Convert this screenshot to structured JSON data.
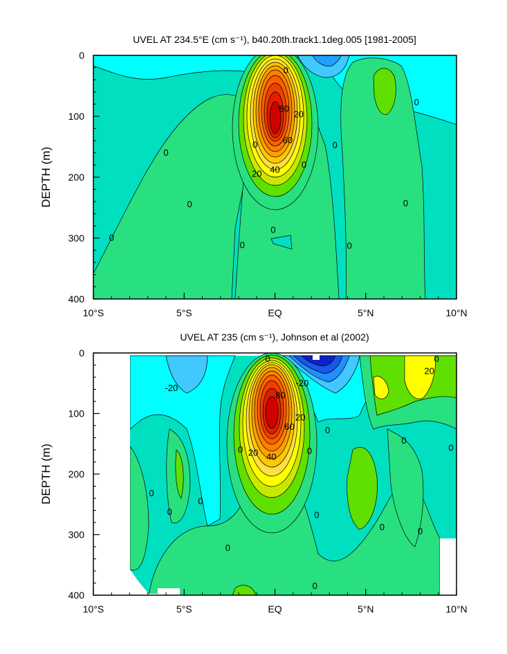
{
  "chart_data": [
    {
      "type": "heatmap",
      "subtype": "filled-contour",
      "title": "UVEL AT 234.5°E (cm s⁻¹), b40.20th.track1.1deg.005 [1981-2005]",
      "ylabel": "DEPTH (m)",
      "xlabel": "",
      "x_ticks": [
        "10°S",
        "5°S",
        "EQ",
        "5°N",
        "10°N"
      ],
      "x_values": [
        -10,
        -5,
        0,
        5,
        10
      ],
      "y_ticks": [
        "0",
        "100",
        "200",
        "300",
        "400"
      ],
      "y_values": [
        0,
        100,
        200,
        300,
        400
      ],
      "xlim": [
        -10,
        10
      ],
      "ylim": [
        400,
        0
      ],
      "contour_interval": 10,
      "core": {
        "lat": 0,
        "depth": 105,
        "max_speed": 100
      },
      "contour_labels": [
        {
          "text": "0",
          "lat": 0.6,
          "depth": 25
        },
        {
          "text": "0",
          "lat": 7.8,
          "depth": 77
        },
        {
          "text": "0",
          "lat": -6,
          "depth": 160
        },
        {
          "text": "0",
          "lat": -1.1,
          "depth": 147
        },
        {
          "text": "0",
          "lat": 3.3,
          "depth": 148
        },
        {
          "text": "0",
          "lat": 1.6,
          "depth": 180
        },
        {
          "text": "0",
          "lat": -4.7,
          "depth": 245
        },
        {
          "text": "0",
          "lat": 7.2,
          "depth": 243
        },
        {
          "text": "0",
          "lat": -9,
          "depth": 300
        },
        {
          "text": "0",
          "lat": -1.8,
          "depth": 312
        },
        {
          "text": "0",
          "lat": -0.1,
          "depth": 287
        },
        {
          "text": "0",
          "lat": 4.1,
          "depth": 313
        },
        {
          "text": "80",
          "lat": 0.5,
          "depth": 88
        },
        {
          "text": "20",
          "lat": 1.3,
          "depth": 97
        },
        {
          "text": "60",
          "lat": 0.7,
          "depth": 140
        },
        {
          "text": "40",
          "lat": 0,
          "depth": 188
        },
        {
          "text": "20",
          "lat": -1,
          "depth": 195
        }
      ]
    },
    {
      "type": "heatmap",
      "subtype": "filled-contour",
      "title": "UVEL AT 235 (cm s⁻¹), Johnson et al (2002)",
      "ylabel": "DEPTH (m)",
      "xlabel": "",
      "x_ticks": [
        "10°S",
        "5°S",
        "EQ",
        "5°N",
        "10°N"
      ],
      "x_values": [
        -10,
        -5,
        0,
        5,
        10
      ],
      "y_ticks": [
        "0",
        "100",
        "200",
        "300",
        "400"
      ],
      "y_values": [
        0,
        100,
        200,
        300,
        400
      ],
      "xlim": [
        -10,
        10
      ],
      "ylim": [
        400,
        0
      ],
      "contour_interval": 10,
      "core": {
        "lat": -0.1,
        "depth": 85,
        "max_speed": 100
      },
      "westward_min": {
        "lat": 2.2,
        "depth": 20,
        "min_speed": -60
      },
      "contour_labels": [
        {
          "text": "0",
          "lat": -0.4,
          "depth": 10
        },
        {
          "text": "-20",
          "lat": -5.7,
          "depth": 58
        },
        {
          "text": "-20",
          "lat": 1.5,
          "depth": 50
        },
        {
          "text": "80",
          "lat": 0.3,
          "depth": 70
        },
        {
          "text": "20",
          "lat": 1.4,
          "depth": 107
        },
        {
          "text": "60",
          "lat": 0.8,
          "depth": 122
        },
        {
          "text": "0",
          "lat": 8.9,
          "depth": 10
        },
        {
          "text": "20",
          "lat": 8.5,
          "depth": 30
        },
        {
          "text": "0",
          "lat": 2.9,
          "depth": 128
        },
        {
          "text": "0",
          "lat": 7.1,
          "depth": 145
        },
        {
          "text": "0",
          "lat": 9.7,
          "depth": 157
        },
        {
          "text": "0",
          "lat": -1.9,
          "depth": 160
        },
        {
          "text": "0",
          "lat": 1.9,
          "depth": 162
        },
        {
          "text": "20",
          "lat": -1.2,
          "depth": 165
        },
        {
          "text": "40",
          "lat": -0.2,
          "depth": 172
        },
        {
          "text": "0",
          "lat": -6.8,
          "depth": 232
        },
        {
          "text": "0",
          "lat": -4.1,
          "depth": 245
        },
        {
          "text": "0",
          "lat": -5.8,
          "depth": 263
        },
        {
          "text": "0",
          "lat": 2.3,
          "depth": 268
        },
        {
          "text": "0",
          "lat": 5.9,
          "depth": 288
        },
        {
          "text": "0",
          "lat": 8,
          "depth": 295
        },
        {
          "text": "0",
          "lat": -2.6,
          "depth": 322
        },
        {
          "text": "0",
          "lat": 2.2,
          "depth": 385
        }
      ]
    }
  ]
}
